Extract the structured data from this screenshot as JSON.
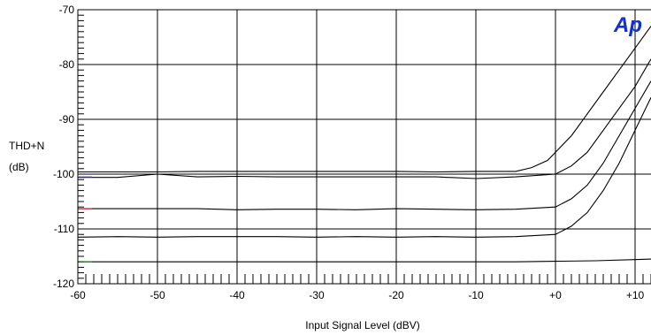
{
  "chart_data": {
    "type": "line",
    "title": "",
    "ylabel_line1": "THD+N",
    "ylabel_line2": "(dB)",
    "xlabel": "Input Signal Level (dBV)",
    "logo_text": "Ap",
    "xlim": [
      -60,
      12
    ],
    "ylim": [
      -120,
      -70
    ],
    "x_ticks": [
      -60,
      -50,
      -40,
      -30,
      -20,
      -10,
      0,
      10
    ],
    "x_tick_labels": [
      "-60",
      "-50",
      "-40",
      "-30",
      "-20",
      "-10",
      "+0",
      "+10"
    ],
    "y_ticks": [
      -120,
      -110,
      -100,
      -90,
      -80,
      -70
    ],
    "y_tick_labels": [
      "-120",
      "-110",
      "-100",
      "-90",
      "-80",
      "-70"
    ],
    "grid": true,
    "colors": {
      "line": "#000000",
      "grid": "#000000",
      "logo": "#1030d8",
      "marker_red": "#cc0000",
      "marker_green": "#1a7f1a"
    },
    "series": [
      {
        "x": [
          -60,
          -55,
          -50,
          -45,
          -40,
          -35,
          -30,
          -25,
          -20,
          -15,
          -10,
          -5,
          -3,
          -1,
          0,
          2,
          4,
          6,
          8,
          10,
          12
        ],
        "values": [
          -99.6,
          -99.6,
          -99.6,
          -99.5,
          -99.5,
          -99.5,
          -99.5,
          -99.5,
          -99.5,
          -99.6,
          -99.5,
          -99.5,
          -98.8,
          -97.5,
          -96,
          -93,
          -89,
          -85,
          -81,
          -77,
          -73
        ]
      },
      {
        "x": [
          -60,
          -55,
          -50,
          -45,
          -40,
          -35,
          -30,
          -25,
          -20,
          -15,
          -10,
          -5,
          0,
          2,
          4,
          6,
          8,
          10,
          12
        ],
        "values": [
          -100.6,
          -100.6,
          -100.0,
          -100.5,
          -100.4,
          -100.5,
          -100.5,
          -100.5,
          -100.5,
          -100.5,
          -100.8,
          -100.5,
          -100.0,
          -98.5,
          -96,
          -92,
          -88,
          -84,
          -79
        ]
      },
      {
        "x": [
          -60,
          -55,
          -50,
          -45,
          -40,
          -35,
          -30,
          -25,
          -20,
          -15,
          -10,
          -5,
          0,
          2,
          4,
          6,
          8,
          10,
          12
        ],
        "values": [
          -106.3,
          -106.3,
          -106.3,
          -106.3,
          -106.5,
          -106.4,
          -106.4,
          -106.5,
          -106.3,
          -106.4,
          -106.5,
          -106.4,
          -106.0,
          -104.5,
          -102,
          -98,
          -93,
          -88,
          -83
        ]
      },
      {
        "x": [
          -60,
          -55,
          -50,
          -45,
          -40,
          -35,
          -30,
          -25,
          -20,
          -15,
          -10,
          -5,
          0,
          2,
          4,
          6,
          8,
          10,
          12
        ],
        "values": [
          -111.5,
          -111.4,
          -111.5,
          -111.4,
          -111.4,
          -111.4,
          -111.5,
          -111.4,
          -111.5,
          -111.4,
          -111.5,
          -111.4,
          -111.0,
          -109.5,
          -107,
          -103,
          -98,
          -92,
          -86
        ]
      },
      {
        "x": [
          -60,
          -55,
          -50,
          -45,
          -40,
          -35,
          -30,
          -25,
          -20,
          -15,
          -10,
          -5,
          0,
          5,
          10,
          12
        ],
        "values": [
          -116.0,
          -116.0,
          -116.0,
          -116.0,
          -116.0,
          -116.0,
          -116.0,
          -116.0,
          -116.0,
          -116.0,
          -116.0,
          -116.0,
          -115.9,
          -115.8,
          -115.6,
          -115.5
        ]
      }
    ]
  }
}
